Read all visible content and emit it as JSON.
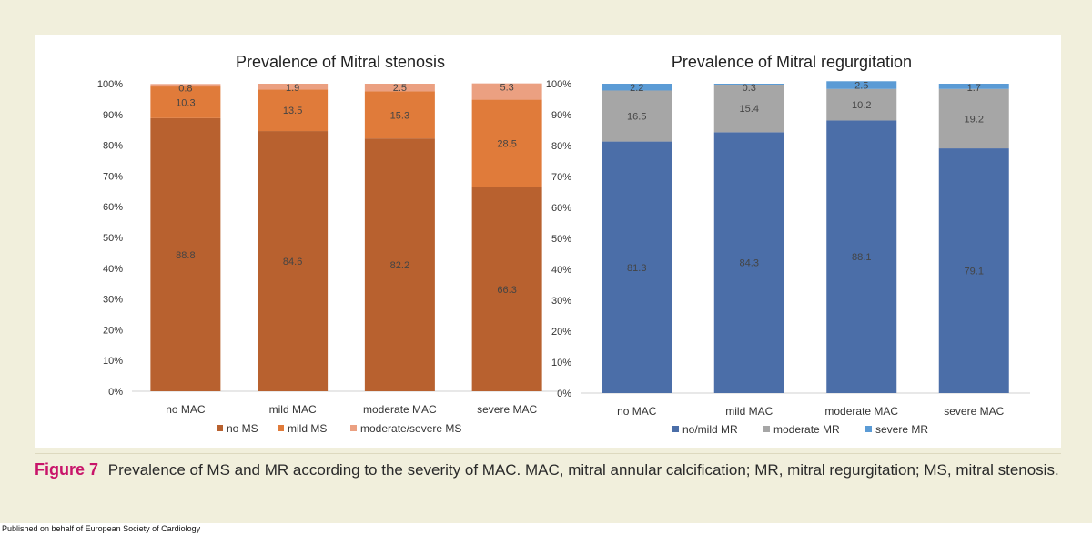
{
  "figure": {
    "label": "Figure 7",
    "caption": "Prevalence of MS and MR according to the severity of MAC. MAC, mitral annular calcification; MR, mitral regurgitation; MS, mitral stenosis."
  },
  "footer": "Published on behalf of European Society of Cardiology",
  "chart_data": [
    {
      "type": "bar",
      "stacked": true,
      "title": "Prevalence of Mitral stenosis",
      "categories": [
        "no MAC",
        "mild MAC",
        "moderate MAC",
        "severe MAC"
      ],
      "ylim": [
        0,
        100
      ],
      "yticks": [
        "0%",
        "10%",
        "20%",
        "30%",
        "40%",
        "50%",
        "60%",
        "70%",
        "80%",
        "90%",
        "100%"
      ],
      "legend_position": "bottom",
      "series": [
        {
          "name": "no MS",
          "color": "#b8612f",
          "values": [
            88.8,
            84.6,
            82.2,
            66.3
          ]
        },
        {
          "name": "mild MS",
          "color": "#e07b3a",
          "values": [
            10.3,
            13.5,
            15.3,
            28.5
          ]
        },
        {
          "name": "moderate/severe MS",
          "color": "#eba081",
          "values": [
            0.8,
            1.9,
            2.5,
            5.3
          ]
        }
      ]
    },
    {
      "type": "bar",
      "stacked": true,
      "title": "Prevalence of Mitral regurgitation",
      "categories": [
        "no MAC",
        "mild MAC",
        "moderate MAC",
        "severe MAC"
      ],
      "ylim": [
        0,
        100
      ],
      "yticks": [
        "0%",
        "10%",
        "20%",
        "30%",
        "40%",
        "50%",
        "60%",
        "70%",
        "80%",
        "90%",
        "100%"
      ],
      "legend_position": "bottom",
      "series": [
        {
          "name": "no/mild MR",
          "color": "#4b6ea8",
          "values": [
            81.3,
            84.3,
            88.1,
            79.1
          ]
        },
        {
          "name": "moderate MR",
          "color": "#a6a6a6",
          "values": [
            16.5,
            15.4,
            10.2,
            19.2
          ]
        },
        {
          "name": "severe MR",
          "color": "#5b9bd5",
          "values": [
            2.2,
            0.3,
            2.5,
            1.7
          ]
        }
      ]
    }
  ]
}
